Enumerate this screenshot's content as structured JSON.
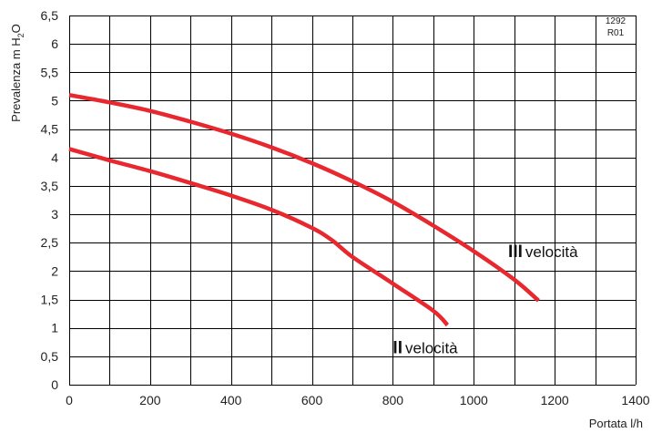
{
  "chart_data": {
    "type": "line",
    "xlabel": "Portata l/h",
    "ylabel_main": "Prevalenza m H",
    "ylabel_sub": "2",
    "ylabel_end": "O",
    "xlim": [
      0,
      1400
    ],
    "ylim": [
      0,
      6.5
    ],
    "x_ticks": [
      0,
      200,
      400,
      600,
      800,
      1000,
      1200,
      1400
    ],
    "x_tick_labels": [
      "0",
      "200",
      "400",
      "600",
      "800",
      "1000",
      "1200",
      "1400"
    ],
    "y_ticks": [
      0,
      0.5,
      1,
      1.5,
      2,
      2.5,
      3,
      3.5,
      4,
      4.5,
      5,
      5.5,
      6,
      6.5
    ],
    "y_tick_labels": [
      "0",
      "0,5",
      "1",
      "1,5",
      "2",
      "2,5",
      "3",
      "3,5",
      "4",
      "4,5",
      "5",
      "5,5",
      "6",
      "6,5"
    ],
    "x_minor_step": 100,
    "grid": true,
    "code_line1": "1292",
    "code_line2": "R01",
    "line_color": "#e8282f",
    "series": [
      {
        "label_roman": "III",
        "label_word": "velocità",
        "label_at": [
          1085,
          2.25
        ],
        "points": [
          [
            0,
            5.1
          ],
          [
            100,
            4.97
          ],
          [
            200,
            4.82
          ],
          [
            300,
            4.63
          ],
          [
            400,
            4.42
          ],
          [
            500,
            4.18
          ],
          [
            600,
            3.9
          ],
          [
            700,
            3.58
          ],
          [
            800,
            3.22
          ],
          [
            900,
            2.8
          ],
          [
            1000,
            2.35
          ],
          [
            1100,
            1.85
          ],
          [
            1160,
            1.48
          ]
        ]
      },
      {
        "label_roman": "II",
        "label_word": "velocità",
        "label_at": [
          800,
          0.55
        ],
        "points": [
          [
            0,
            4.15
          ],
          [
            100,
            3.95
          ],
          [
            200,
            3.76
          ],
          [
            300,
            3.55
          ],
          [
            400,
            3.33
          ],
          [
            500,
            3.08
          ],
          [
            600,
            2.76
          ],
          [
            650,
            2.54
          ],
          [
            700,
            2.25
          ],
          [
            800,
            1.78
          ],
          [
            900,
            1.3
          ],
          [
            935,
            1.05
          ]
        ]
      }
    ]
  }
}
